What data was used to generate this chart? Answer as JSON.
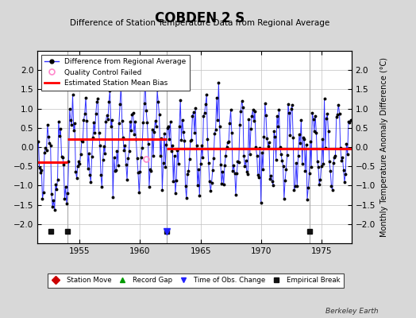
{
  "title": "COBDEN 2 S",
  "subtitle": "Difference of Station Temperature Data from Regional Average",
  "ylabel": "Monthly Temperature Anomaly Difference (°C)",
  "ylim": [
    -2.5,
    2.5
  ],
  "yticks": [
    -2,
    -1.5,
    -1,
    -0.5,
    0,
    0.5,
    1,
    1.5,
    2
  ],
  "xlim": [
    1951.5,
    1977.5
  ],
  "xticks": [
    1955,
    1960,
    1965,
    1970,
    1975
  ],
  "background_color": "#d8d8d8",
  "plot_bg_color": "#ffffff",
  "grid_color": "#c0c0c0",
  "line_color": "#3333ff",
  "marker_color": "#000000",
  "bias_color": "#ff0000",
  "watermark": "Berkeley Earth",
  "segments": [
    {
      "x_start": 1951.5,
      "x_end": 1954.0,
      "bias": -0.4
    },
    {
      "x_start": 1954.0,
      "x_end": 1962.2,
      "bias": 0.2
    },
    {
      "x_start": 1962.2,
      "x_end": 1974.0,
      "bias": -0.05
    },
    {
      "x_start": 1974.0,
      "x_end": 1977.5,
      "bias": -0.05
    }
  ],
  "vertical_lines": [
    1954.0,
    1962.2,
    1974.0
  ],
  "vertical_line_color": "#aaaaaa",
  "empirical_breaks": [
    1952.6,
    1954.0,
    1962.2,
    1974.0
  ],
  "obs_changes": [
    1962.2
  ],
  "station_moves": [],
  "record_gaps": [],
  "qc_failed_x": [
    1960.5
  ],
  "qc_failed_y": [
    -0.3
  ]
}
